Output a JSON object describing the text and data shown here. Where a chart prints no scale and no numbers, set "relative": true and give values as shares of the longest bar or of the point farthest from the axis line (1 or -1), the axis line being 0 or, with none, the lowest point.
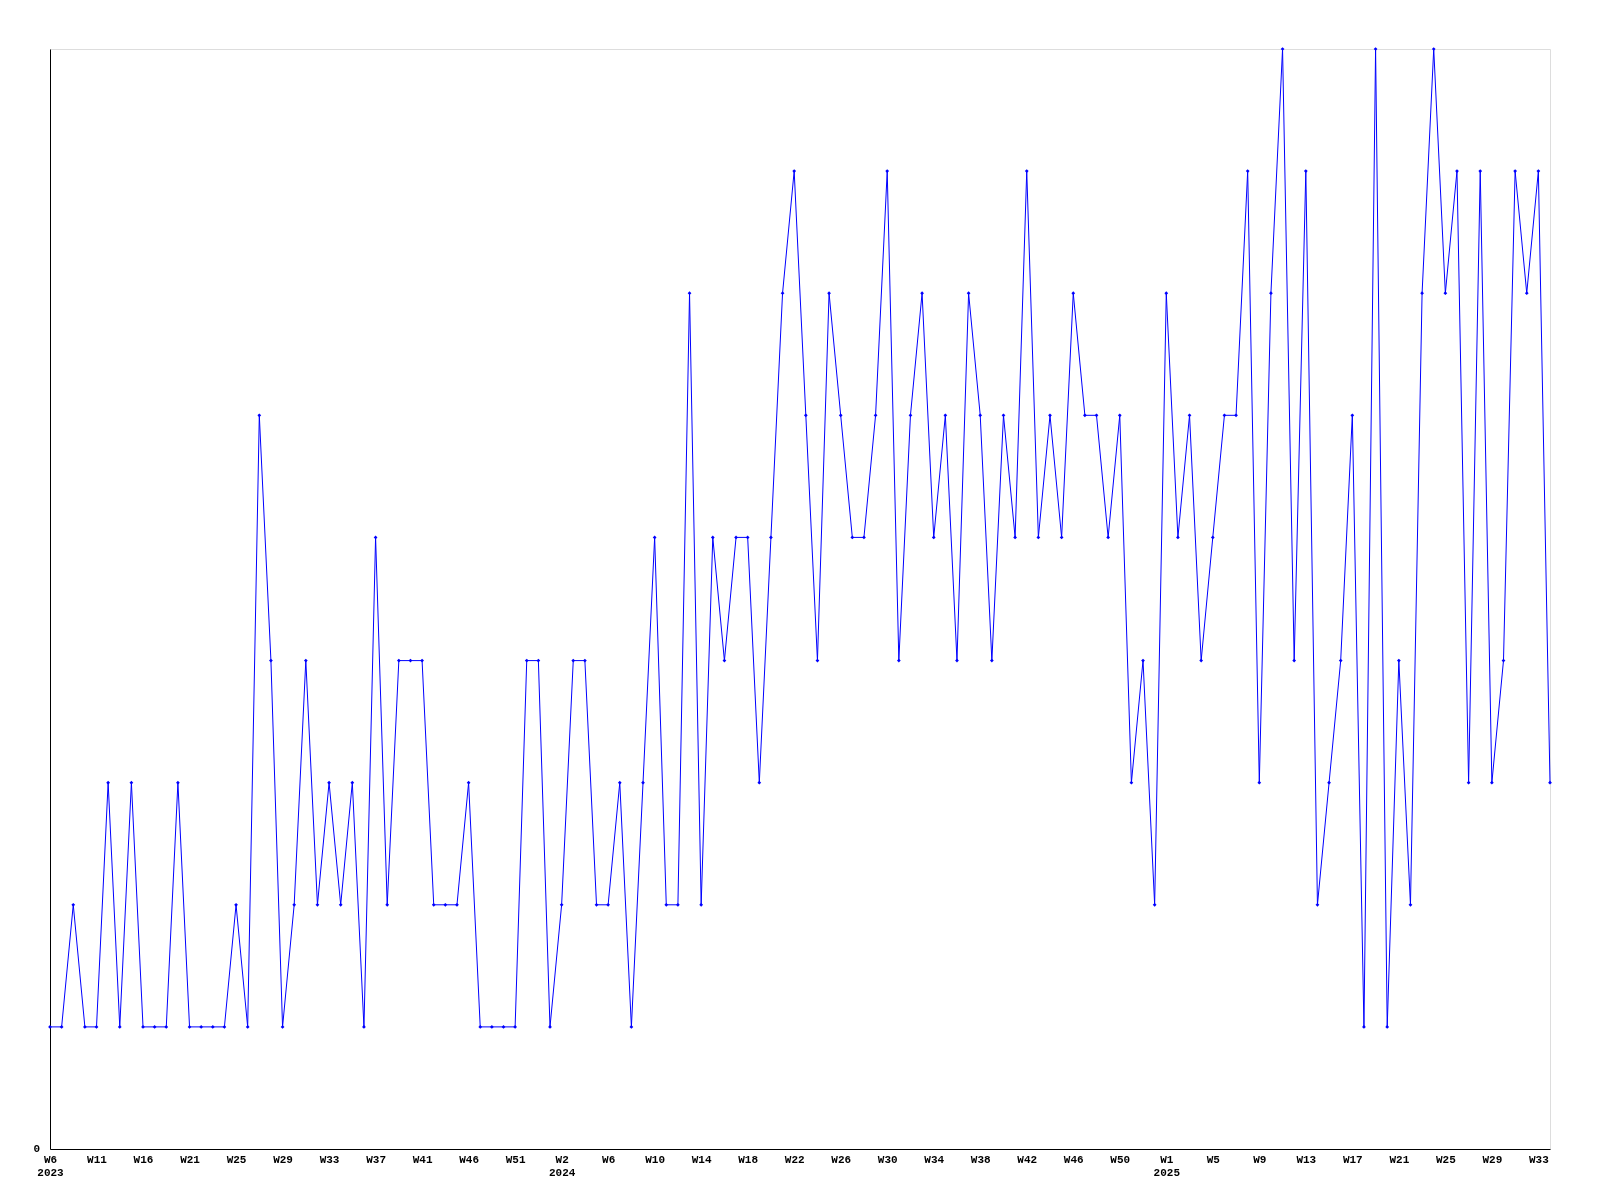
{
  "chart_data": {
    "type": "line",
    "relative": true,
    "color": "#0000ff",
    "marker": "diamond",
    "line_style": "solid",
    "grid": false,
    "annotations": [
      "0"
    ],
    "categories": [
      "W6\n2023",
      null,
      null,
      null,
      "W11",
      null,
      null,
      null,
      "W16",
      null,
      null,
      null,
      "W21",
      null,
      null,
      null,
      "W25",
      null,
      null,
      null,
      "W29",
      null,
      null,
      null,
      "W33",
      null,
      null,
      null,
      "W37",
      null,
      null,
      null,
      "W41",
      null,
      null,
      null,
      "W46",
      null,
      null,
      null,
      "W51",
      null,
      null,
      null,
      "W2\n2024",
      null,
      null,
      null,
      "W6",
      null,
      null,
      null,
      "W10",
      null,
      null,
      null,
      "W14",
      null,
      null,
      null,
      "W18",
      null,
      null,
      null,
      "W22",
      null,
      null,
      null,
      "W26",
      null,
      null,
      null,
      "W30",
      null,
      null,
      null,
      "W34",
      null,
      null,
      null,
      "W38",
      null,
      null,
      null,
      "W42",
      null,
      null,
      null,
      "W46",
      null,
      null,
      null,
      "W50",
      null,
      null,
      null,
      "W1\n2025",
      null,
      null,
      null,
      "W5",
      null,
      null,
      null,
      "W9",
      null,
      null,
      null,
      "W13",
      null,
      null,
      null,
      "W17",
      null,
      null,
      null,
      "W21",
      null,
      null,
      null,
      "W25",
      null,
      null,
      null,
      "W29",
      null,
      null,
      null,
      "W33",
      null
    ],
    "values": [
      0.111,
      0.111,
      0.222,
      0.111,
      0.111,
      0.333,
      0.111,
      0.333,
      0.111,
      0.111,
      0.111,
      0.333,
      0.111,
      0.111,
      0.111,
      0.111,
      0.222,
      0.111,
      0.667,
      0.444,
      0.111,
      0.222,
      0.444,
      0.222,
      0.333,
      0.222,
      0.333,
      0.111,
      0.556,
      0.222,
      0.444,
      0.444,
      0.444,
      0.222,
      0.222,
      0.222,
      0.333,
      0.111,
      0.111,
      0.111,
      0.111,
      0.444,
      0.444,
      0.111,
      0.222,
      0.444,
      0.444,
      0.222,
      0.222,
      0.333,
      0.111,
      0.333,
      0.556,
      0.222,
      0.222,
      0.778,
      0.222,
      0.556,
      0.444,
      0.556,
      0.556,
      0.333,
      0.556,
      0.778,
      0.889,
      0.667,
      0.444,
      0.778,
      0.667,
      0.556,
      0.556,
      0.667,
      0.889,
      0.444,
      0.667,
      0.778,
      0.556,
      0.667,
      0.444,
      0.778,
      0.667,
      0.444,
      0.667,
      0.556,
      0.889,
      0.556,
      0.667,
      0.556,
      0.778,
      0.667,
      0.667,
      0.556,
      0.667,
      0.333,
      0.444,
      0.222,
      0.778,
      0.556,
      0.667,
      0.444,
      0.556,
      0.667,
      0.667,
      0.889,
      0.333,
      0.778,
      1,
      0.444,
      0.889,
      0.222,
      0.333,
      0.444,
      0.667,
      0.111,
      1,
      0.111,
      0.444,
      0.222,
      0.778,
      1,
      0.778,
      0.889,
      0.333,
      0.889,
      0.333,
      0.444,
      0.889,
      0.778,
      0.889,
      0.333
    ]
  }
}
